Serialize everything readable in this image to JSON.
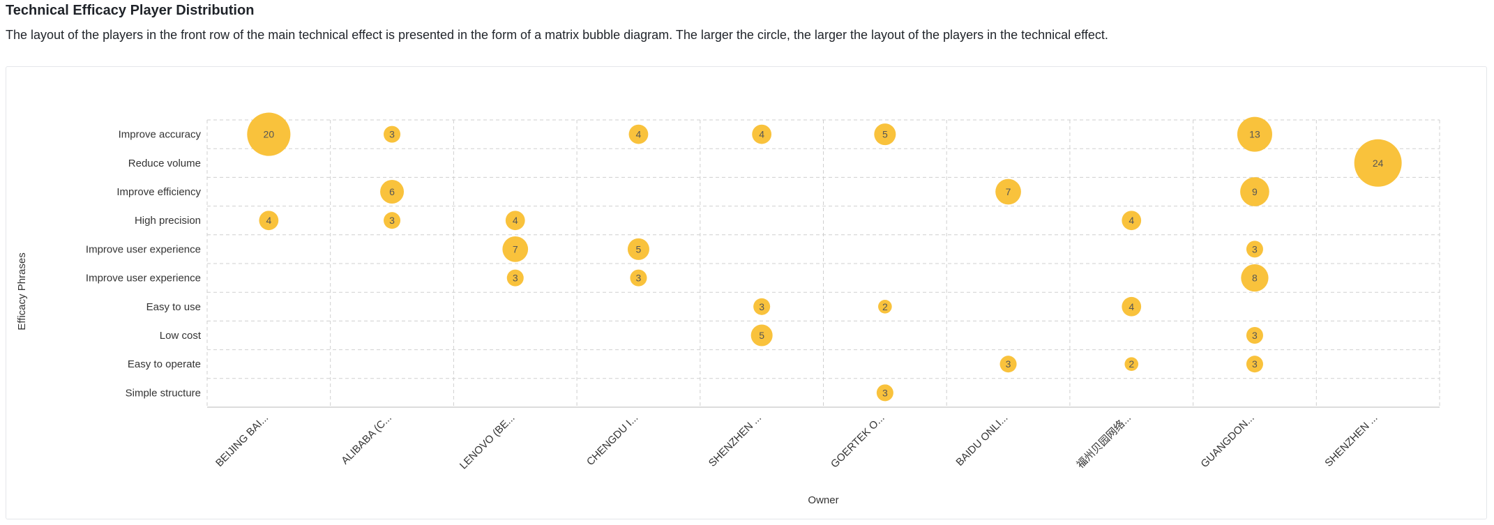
{
  "header": {
    "title": "Technical Efficacy Player Distribution",
    "description": "The layout of the players in the front row of the main technical effect is presented in the form of a matrix bubble diagram. The larger the circle, the larger the layout of the players in the technical effect."
  },
  "colors": {
    "bubble": "#f9c23c",
    "bubble_text": "#555555",
    "grid": "#cfcfcf",
    "axis_text": "#333333"
  },
  "chart_data": {
    "type": "scatter",
    "xlabel": "Owner",
    "ylabel": "Efficacy Phrases",
    "x_categories": [
      "BEIJING BAI...",
      "ALIBABA (C...",
      "LENOVO (BE...",
      "CHENGDU I...",
      "SHENZHEN ...",
      "GOERTEK O...",
      "BAIDU ONLI...",
      "福州贝园网络...",
      "GUANGDON...",
      "SHENZHEN ..."
    ],
    "y_categories": [
      "Improve accuracy",
      "Reduce volume",
      "Improve efficiency",
      "High precision",
      "Improve user experience",
      "Improve user experience",
      "Easy to use",
      "Low cost",
      "Easy to operate",
      "Simple structure"
    ],
    "grid": true,
    "points": [
      {
        "x": 0,
        "y": 0,
        "value": 20
      },
      {
        "x": 1,
        "y": 0,
        "value": 3
      },
      {
        "x": 3,
        "y": 0,
        "value": 4
      },
      {
        "x": 4,
        "y": 0,
        "value": 4
      },
      {
        "x": 5,
        "y": 0,
        "value": 5
      },
      {
        "x": 8,
        "y": 0,
        "value": 13
      },
      {
        "x": 9,
        "y": 1,
        "value": 24
      },
      {
        "x": 1,
        "y": 2,
        "value": 6
      },
      {
        "x": 6,
        "y": 2,
        "value": 7
      },
      {
        "x": 8,
        "y": 2,
        "value": 9
      },
      {
        "x": 0,
        "y": 3,
        "value": 4
      },
      {
        "x": 1,
        "y": 3,
        "value": 3
      },
      {
        "x": 2,
        "y": 3,
        "value": 4
      },
      {
        "x": 7,
        "y": 3,
        "value": 4
      },
      {
        "x": 2,
        "y": 4,
        "value": 7
      },
      {
        "x": 3,
        "y": 4,
        "value": 5
      },
      {
        "x": 8,
        "y": 4,
        "value": 3
      },
      {
        "x": 2,
        "y": 5,
        "value": 3
      },
      {
        "x": 3,
        "y": 5,
        "value": 3
      },
      {
        "x": 8,
        "y": 5,
        "value": 8
      },
      {
        "x": 4,
        "y": 6,
        "value": 3
      },
      {
        "x": 5,
        "y": 6,
        "value": 2
      },
      {
        "x": 7,
        "y": 6,
        "value": 4
      },
      {
        "x": 4,
        "y": 7,
        "value": 5
      },
      {
        "x": 8,
        "y": 7,
        "value": 3
      },
      {
        "x": 6,
        "y": 8,
        "value": 3
      },
      {
        "x": 7,
        "y": 8,
        "value": 2
      },
      {
        "x": 8,
        "y": 8,
        "value": 3
      },
      {
        "x": 5,
        "y": 9,
        "value": 3
      }
    ]
  }
}
